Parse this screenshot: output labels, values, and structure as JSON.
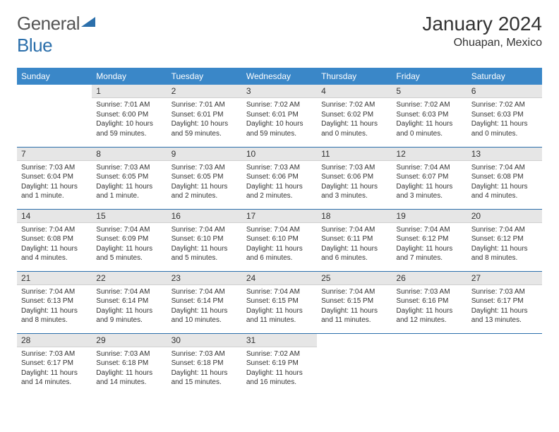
{
  "logo": {
    "text1": "General",
    "text2": "Blue"
  },
  "title": "January 2024",
  "location": "Ohuapan, Mexico",
  "colors": {
    "header_bg": "#3a87c8",
    "border": "#2b6fab",
    "daynum_bg": "#e6e6e6",
    "text": "#333333"
  },
  "weekdays": [
    "Sunday",
    "Monday",
    "Tuesday",
    "Wednesday",
    "Thursday",
    "Friday",
    "Saturday"
  ],
  "weeks": [
    [
      {
        "day": "",
        "sunrise": "",
        "sunset": "",
        "daylight": "",
        "empty": true
      },
      {
        "day": "1",
        "sunrise": "Sunrise: 7:01 AM",
        "sunset": "Sunset: 6:00 PM",
        "daylight": "Daylight: 10 hours and 59 minutes."
      },
      {
        "day": "2",
        "sunrise": "Sunrise: 7:01 AM",
        "sunset": "Sunset: 6:01 PM",
        "daylight": "Daylight: 10 hours and 59 minutes."
      },
      {
        "day": "3",
        "sunrise": "Sunrise: 7:02 AM",
        "sunset": "Sunset: 6:01 PM",
        "daylight": "Daylight: 10 hours and 59 minutes."
      },
      {
        "day": "4",
        "sunrise": "Sunrise: 7:02 AM",
        "sunset": "Sunset: 6:02 PM",
        "daylight": "Daylight: 11 hours and 0 minutes."
      },
      {
        "day": "5",
        "sunrise": "Sunrise: 7:02 AM",
        "sunset": "Sunset: 6:03 PM",
        "daylight": "Daylight: 11 hours and 0 minutes."
      },
      {
        "day": "6",
        "sunrise": "Sunrise: 7:02 AM",
        "sunset": "Sunset: 6:03 PM",
        "daylight": "Daylight: 11 hours and 0 minutes."
      }
    ],
    [
      {
        "day": "7",
        "sunrise": "Sunrise: 7:03 AM",
        "sunset": "Sunset: 6:04 PM",
        "daylight": "Daylight: 11 hours and 1 minute."
      },
      {
        "day": "8",
        "sunrise": "Sunrise: 7:03 AM",
        "sunset": "Sunset: 6:05 PM",
        "daylight": "Daylight: 11 hours and 1 minute."
      },
      {
        "day": "9",
        "sunrise": "Sunrise: 7:03 AM",
        "sunset": "Sunset: 6:05 PM",
        "daylight": "Daylight: 11 hours and 2 minutes."
      },
      {
        "day": "10",
        "sunrise": "Sunrise: 7:03 AM",
        "sunset": "Sunset: 6:06 PM",
        "daylight": "Daylight: 11 hours and 2 minutes."
      },
      {
        "day": "11",
        "sunrise": "Sunrise: 7:03 AM",
        "sunset": "Sunset: 6:06 PM",
        "daylight": "Daylight: 11 hours and 3 minutes."
      },
      {
        "day": "12",
        "sunrise": "Sunrise: 7:04 AM",
        "sunset": "Sunset: 6:07 PM",
        "daylight": "Daylight: 11 hours and 3 minutes."
      },
      {
        "day": "13",
        "sunrise": "Sunrise: 7:04 AM",
        "sunset": "Sunset: 6:08 PM",
        "daylight": "Daylight: 11 hours and 4 minutes."
      }
    ],
    [
      {
        "day": "14",
        "sunrise": "Sunrise: 7:04 AM",
        "sunset": "Sunset: 6:08 PM",
        "daylight": "Daylight: 11 hours and 4 minutes."
      },
      {
        "day": "15",
        "sunrise": "Sunrise: 7:04 AM",
        "sunset": "Sunset: 6:09 PM",
        "daylight": "Daylight: 11 hours and 5 minutes."
      },
      {
        "day": "16",
        "sunrise": "Sunrise: 7:04 AM",
        "sunset": "Sunset: 6:10 PM",
        "daylight": "Daylight: 11 hours and 5 minutes."
      },
      {
        "day": "17",
        "sunrise": "Sunrise: 7:04 AM",
        "sunset": "Sunset: 6:10 PM",
        "daylight": "Daylight: 11 hours and 6 minutes."
      },
      {
        "day": "18",
        "sunrise": "Sunrise: 7:04 AM",
        "sunset": "Sunset: 6:11 PM",
        "daylight": "Daylight: 11 hours and 6 minutes."
      },
      {
        "day": "19",
        "sunrise": "Sunrise: 7:04 AM",
        "sunset": "Sunset: 6:12 PM",
        "daylight": "Daylight: 11 hours and 7 minutes."
      },
      {
        "day": "20",
        "sunrise": "Sunrise: 7:04 AM",
        "sunset": "Sunset: 6:12 PM",
        "daylight": "Daylight: 11 hours and 8 minutes."
      }
    ],
    [
      {
        "day": "21",
        "sunrise": "Sunrise: 7:04 AM",
        "sunset": "Sunset: 6:13 PM",
        "daylight": "Daylight: 11 hours and 8 minutes."
      },
      {
        "day": "22",
        "sunrise": "Sunrise: 7:04 AM",
        "sunset": "Sunset: 6:14 PM",
        "daylight": "Daylight: 11 hours and 9 minutes."
      },
      {
        "day": "23",
        "sunrise": "Sunrise: 7:04 AM",
        "sunset": "Sunset: 6:14 PM",
        "daylight": "Daylight: 11 hours and 10 minutes."
      },
      {
        "day": "24",
        "sunrise": "Sunrise: 7:04 AM",
        "sunset": "Sunset: 6:15 PM",
        "daylight": "Daylight: 11 hours and 11 minutes."
      },
      {
        "day": "25",
        "sunrise": "Sunrise: 7:04 AM",
        "sunset": "Sunset: 6:15 PM",
        "daylight": "Daylight: 11 hours and 11 minutes."
      },
      {
        "day": "26",
        "sunrise": "Sunrise: 7:03 AM",
        "sunset": "Sunset: 6:16 PM",
        "daylight": "Daylight: 11 hours and 12 minutes."
      },
      {
        "day": "27",
        "sunrise": "Sunrise: 7:03 AM",
        "sunset": "Sunset: 6:17 PM",
        "daylight": "Daylight: 11 hours and 13 minutes."
      }
    ],
    [
      {
        "day": "28",
        "sunrise": "Sunrise: 7:03 AM",
        "sunset": "Sunset: 6:17 PM",
        "daylight": "Daylight: 11 hours and 14 minutes."
      },
      {
        "day": "29",
        "sunrise": "Sunrise: 7:03 AM",
        "sunset": "Sunset: 6:18 PM",
        "daylight": "Daylight: 11 hours and 14 minutes."
      },
      {
        "day": "30",
        "sunrise": "Sunrise: 7:03 AM",
        "sunset": "Sunset: 6:18 PM",
        "daylight": "Daylight: 11 hours and 15 minutes."
      },
      {
        "day": "31",
        "sunrise": "Sunrise: 7:02 AM",
        "sunset": "Sunset: 6:19 PM",
        "daylight": "Daylight: 11 hours and 16 minutes."
      },
      {
        "day": "",
        "sunrise": "",
        "sunset": "",
        "daylight": "",
        "empty": true
      },
      {
        "day": "",
        "sunrise": "",
        "sunset": "",
        "daylight": "",
        "empty": true
      },
      {
        "day": "",
        "sunrise": "",
        "sunset": "",
        "daylight": "",
        "empty": true
      }
    ]
  ]
}
